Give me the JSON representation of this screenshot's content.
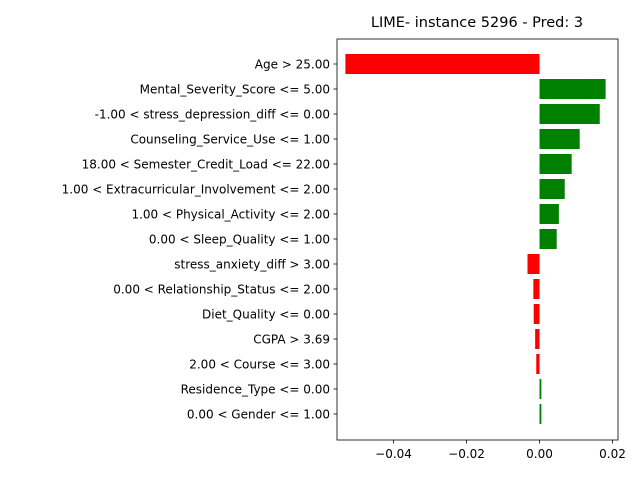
{
  "chart_data": {
    "type": "bar",
    "orientation": "horizontal",
    "title": "LIME- instance 5296 - Pred: 3",
    "xlabel": "",
    "ylabel": "",
    "xlim": [
      -0.0555,
      0.0215
    ],
    "xticks": [
      -0.04,
      -0.02,
      0.0,
      0.02
    ],
    "xtick_labels": [
      "−0.04",
      "−0.02",
      "0.00",
      "0.02"
    ],
    "grid": false,
    "positive_color": "#008000",
    "negative_color": "#ff0000",
    "categories": [
      "Age > 25.00",
      "Mental_Severity_Score <= 5.00",
      "-1.00 < stress_depression_diff <= 0.00",
      "Counseling_Service_Use <= 1.00",
      "18.00 < Semester_Credit_Load <= 22.00",
      "1.00 < Extracurricular_Involvement <= 2.00",
      "1.00 < Physical_Activity <= 2.00",
      "0.00 < Sleep_Quality <= 1.00",
      "stress_anxiety_diff > 3.00",
      "0.00 < Relationship_Status <= 2.00",
      "Diet_Quality <= 0.00",
      "CGPA > 3.69",
      "2.00 < Course <= 3.00",
      "Residence_Type <= 0.00",
      "0.00 < Gender <= 1.00"
    ],
    "values": [
      -0.0532,
      0.0181,
      0.0165,
      0.011,
      0.0088,
      0.0069,
      0.0053,
      0.0047,
      -0.0033,
      -0.0017,
      -0.0016,
      -0.0012,
      -0.0009,
      0.0005,
      0.0005
    ]
  }
}
